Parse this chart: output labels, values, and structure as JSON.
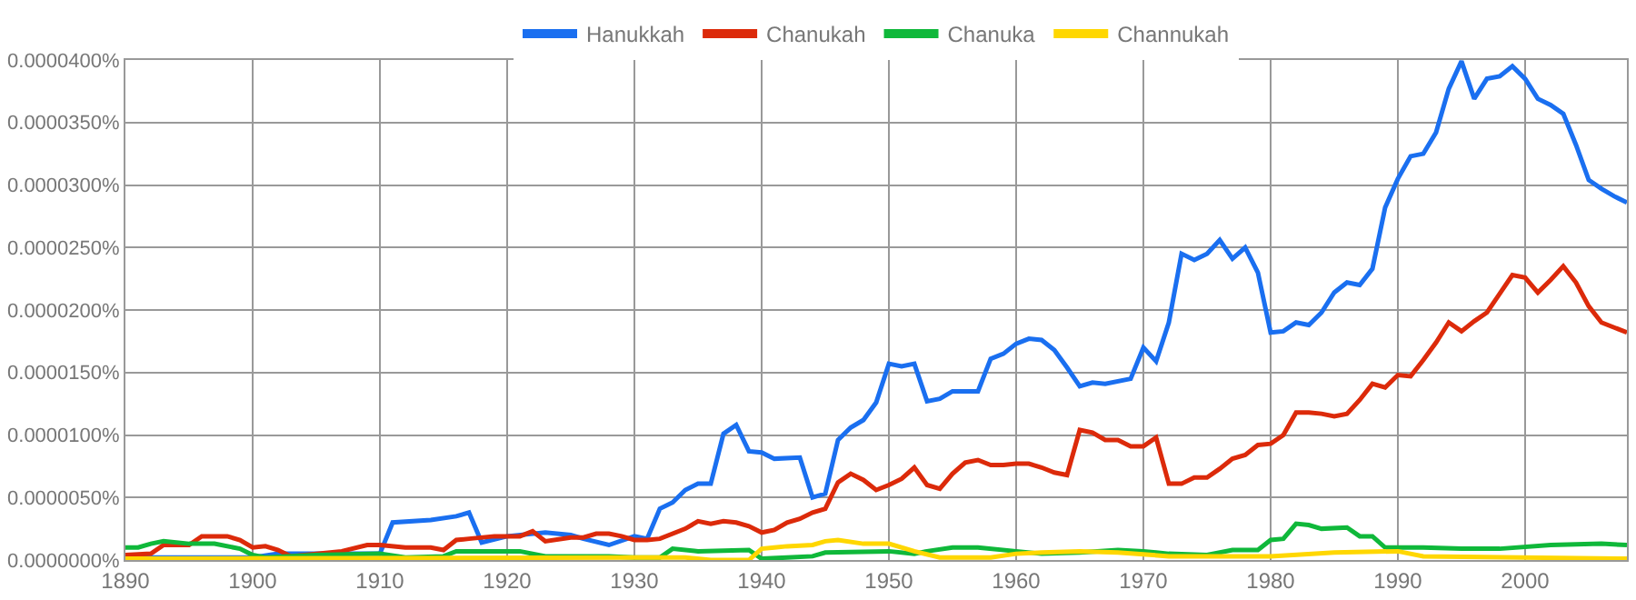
{
  "chart_data": {
    "type": "line",
    "legend": "top",
    "grid": true,
    "marker": "none",
    "line_style": "solid",
    "xlim": [
      1890,
      2008
    ],
    "xticks": [
      1890,
      1900,
      1910,
      1920,
      1930,
      1940,
      1950,
      1960,
      1970,
      1980,
      1990,
      2000
    ],
    "ylim": [
      0,
      4e-05
    ],
    "yticks": [
      {
        "value": 0,
        "label": "0.0000000%"
      },
      {
        "value": 5e-06,
        "label": "0.0000050%"
      },
      {
        "value": 1e-05,
        "label": "0.0000100%"
      },
      {
        "value": 1.5e-05,
        "label": "0.0000150%"
      },
      {
        "value": 2e-05,
        "label": "0.0000200%"
      },
      {
        "value": 2.5e-05,
        "label": "0.0000250%"
      },
      {
        "value": 3e-05,
        "label": "0.0000300%"
      },
      {
        "value": 3.5e-05,
        "label": "0.0000350%"
      },
      {
        "value": 4e-05,
        "label": "0.0000400%"
      }
    ],
    "series": [
      {
        "name": "Hanukkah",
        "color": "#1a6ff0",
        "x": [
          1890,
          1900,
          1902,
          1910,
          1911,
          1914,
          1916,
          1917,
          1918,
          1920,
          1923,
          1925,
          1926,
          1928,
          1930,
          1931,
          1932,
          1933,
          1934,
          1935,
          1936,
          1937,
          1938,
          1939,
          1940,
          1941,
          1943,
          1944,
          1945,
          1946,
          1947,
          1948,
          1949,
          1950,
          1951,
          1952,
          1953,
          1954,
          1955,
          1957,
          1958,
          1959,
          1960,
          1961,
          1962,
          1963,
          1964,
          1965,
          1966,
          1967,
          1969,
          1970,
          1971,
          1972,
          1973,
          1974,
          1975,
          1976,
          1977,
          1978,
          1979,
          1980,
          1981,
          1982,
          1983,
          1984,
          1985,
          1986,
          1987,
          1988,
          1989,
          1990,
          1991,
          1992,
          1993,
          1994,
          1995,
          1996,
          1997,
          1998,
          1999,
          2000,
          2001,
          2002,
          2003,
          2004,
          2005,
          2006,
          2007,
          2008
        ],
        "values": [
          2e-07,
          2e-07,
          5e-07,
          5e-07,
          3e-06,
          3.2e-06,
          3.5e-06,
          3.8e-06,
          1.4e-06,
          1.9e-06,
          2.2e-06,
          2e-06,
          1.7e-06,
          1.2e-06,
          1.9e-06,
          1.7e-06,
          4.1e-06,
          4.6e-06,
          5.6e-06,
          6.1e-06,
          6.1e-06,
          1.01e-05,
          1.08e-05,
          8.7e-06,
          8.6e-06,
          8.1e-06,
          8.2e-06,
          5e-06,
          5.3e-06,
          9.6e-06,
          1.06e-05,
          1.12e-05,
          1.26e-05,
          1.57e-05,
          1.55e-05,
          1.57e-05,
          1.27e-05,
          1.29e-05,
          1.35e-05,
          1.35e-05,
          1.61e-05,
          1.65e-05,
          1.73e-05,
          1.77e-05,
          1.76e-05,
          1.68e-05,
          1.54e-05,
          1.39e-05,
          1.42e-05,
          1.41e-05,
          1.45e-05,
          1.7e-05,
          1.59e-05,
          1.9e-05,
          2.45e-05,
          2.4e-05,
          2.45e-05,
          2.56e-05,
          2.41e-05,
          2.5e-05,
          2.3e-05,
          1.82e-05,
          1.83e-05,
          1.9e-05,
          1.88e-05,
          1.98e-05,
          2.14e-05,
          2.22e-05,
          2.2e-05,
          2.33e-05,
          2.82e-05,
          3.05e-05,
          3.23e-05,
          3.25e-05,
          3.42e-05,
          3.77e-05,
          3.99e-05,
          3.69e-05,
          3.85e-05,
          3.87e-05,
          3.95e-05,
          3.85e-05,
          3.69e-05,
          3.64e-05,
          3.57e-05,
          3.32e-05,
          3.04e-05,
          2.97e-05,
          2.91e-05,
          2.86e-05
        ]
      },
      {
        "name": "Chanukah",
        "color": "#dc2a0a",
        "x": [
          1890,
          1892,
          1893,
          1895,
          1896,
          1898,
          1899,
          1900,
          1901,
          1902,
          1903,
          1905,
          1907,
          1909,
          1910,
          1912,
          1914,
          1915,
          1916,
          1917,
          1919,
          1921,
          1922,
          1923,
          1925,
          1926,
          1927,
          1928,
          1929,
          1930,
          1931,
          1932,
          1934,
          1935,
          1936,
          1937,
          1938,
          1939,
          1940,
          1941,
          1942,
          1943,
          1944,
          1945,
          1946,
          1947,
          1948,
          1949,
          1950,
          1951,
          1952,
          1953,
          1954,
          1955,
          1956,
          1957,
          1958,
          1959,
          1960,
          1961,
          1962,
          1963,
          1964,
          1965,
          1966,
          1967,
          1968,
          1969,
          1970,
          1971,
          1972,
          1973,
          1974,
          1975,
          1976,
          1977,
          1978,
          1979,
          1980,
          1981,
          1982,
          1983,
          1984,
          1985,
          1986,
          1987,
          1988,
          1989,
          1990,
          1991,
          1992,
          1993,
          1994,
          1995,
          1996,
          1997,
          1998,
          1999,
          2000,
          2001,
          2002,
          2003,
          2004,
          2005,
          2006,
          2007,
          2008
        ],
        "values": [
          4e-07,
          5e-07,
          1.2e-06,
          1.2e-06,
          1.9e-06,
          1.9e-06,
          1.6e-06,
          1e-06,
          1.1e-06,
          8e-07,
          3e-07,
          5e-07,
          7e-07,
          1.2e-06,
          1.2e-06,
          1e-06,
          1e-06,
          8e-07,
          1.6e-06,
          1.7e-06,
          1.9e-06,
          1.9e-06,
          2.3e-06,
          1.5e-06,
          1.8e-06,
          1.8e-06,
          2.1e-06,
          2.1e-06,
          1.9e-06,
          1.6e-06,
          1.6e-06,
          1.7e-06,
          2.5e-06,
          3.1e-06,
          2.9e-06,
          3.1e-06,
          3e-06,
          2.7e-06,
          2.2e-06,
          2.4e-06,
          3e-06,
          3.3e-06,
          3.8e-06,
          4.1e-06,
          6.2e-06,
          6.9e-06,
          6.4e-06,
          5.6e-06,
          6e-06,
          6.5e-06,
          7.4e-06,
          6e-06,
          5.7e-06,
          6.9e-06,
          7.8e-06,
          8e-06,
          7.6e-06,
          7.6e-06,
          7.7e-06,
          7.7e-06,
          7.4e-06,
          7e-06,
          6.8e-06,
          1.04e-05,
          1.02e-05,
          9.6e-06,
          9.6e-06,
          9.1e-06,
          9.1e-06,
          9.8e-06,
          6.1e-06,
          6.1e-06,
          6.6e-06,
          6.6e-06,
          7.3e-06,
          8.1e-06,
          8.4e-06,
          9.2e-06,
          9.3e-06,
          1e-05,
          1.18e-05,
          1.18e-05,
          1.17e-05,
          1.15e-05,
          1.17e-05,
          1.28e-05,
          1.41e-05,
          1.38e-05,
          1.48e-05,
          1.47e-05,
          1.6e-05,
          1.74e-05,
          1.9e-05,
          1.83e-05,
          1.91e-05,
          1.98e-05,
          2.13e-05,
          2.28e-05,
          2.26e-05,
          2.14e-05,
          2.24e-05,
          2.35e-05,
          2.22e-05,
          2.03e-05,
          1.9e-05,
          1.86e-05,
          1.82e-05
        ]
      },
      {
        "name": "Chanuka",
        "color": "#0fb83a",
        "x": [
          1890,
          1891,
          1892,
          1893,
          1895,
          1897,
          1899,
          1900,
          1901,
          1905,
          1910,
          1912,
          1915,
          1916,
          1918,
          1921,
          1923,
          1928,
          1930,
          1932,
          1933,
          1935,
          1939,
          1940,
          1942,
          1944,
          1945,
          1950,
          1952,
          1953,
          1955,
          1957,
          1960,
          1962,
          1965,
          1968,
          1970,
          1972,
          1975,
          1977,
          1979,
          1980,
          1981,
          1982,
          1983,
          1984,
          1986,
          1987,
          1988,
          1989,
          1992,
          1995,
          1998,
          2002,
          2006,
          2008
        ],
        "values": [
          1e-06,
          1e-06,
          1.3e-06,
          1.5e-06,
          1.3e-06,
          1.3e-06,
          9e-07,
          4e-07,
          2e-07,
          4e-07,
          5e-07,
          2e-07,
          3e-07,
          7e-07,
          7e-07,
          7e-07,
          3e-07,
          3e-07,
          2e-07,
          2e-07,
          9e-07,
          7e-07,
          8e-07,
          1e-07,
          2e-07,
          3e-07,
          6e-07,
          7e-07,
          5e-07,
          7e-07,
          1e-06,
          1e-06,
          7e-07,
          5e-07,
          6e-07,
          8e-07,
          7e-07,
          5e-07,
          4e-07,
          8e-07,
          8e-07,
          1.6e-06,
          1.7e-06,
          2.9e-06,
          2.8e-06,
          2.5e-06,
          2.6e-06,
          1.9e-06,
          1.9e-06,
          1e-06,
          1e-06,
          9e-07,
          9e-07,
          1.2e-06,
          1.3e-06,
          1.2e-06
        ]
      },
      {
        "name": "Channukah",
        "color": "#ffd700",
        "x": [
          1890,
          1930,
          1934,
          1936,
          1939,
          1940,
          1941,
          1942,
          1944,
          1945,
          1946,
          1948,
          1950,
          1952,
          1954,
          1958,
          1960,
          1962,
          1965,
          1968,
          1972,
          1980,
          1985,
          1990,
          1992,
          2008
        ],
        "values": [
          1e-07,
          2e-07,
          2e-07,
          0,
          0,
          9e-07,
          1e-06,
          1.1e-06,
          1.2e-06,
          1.5e-06,
          1.6e-06,
          1.3e-06,
          1.3e-06,
          7e-07,
          2e-07,
          2e-07,
          5e-07,
          6e-07,
          7e-07,
          6e-07,
          3e-07,
          3e-07,
          6e-07,
          7e-07,
          3e-07,
          1e-07
        ]
      }
    ]
  }
}
